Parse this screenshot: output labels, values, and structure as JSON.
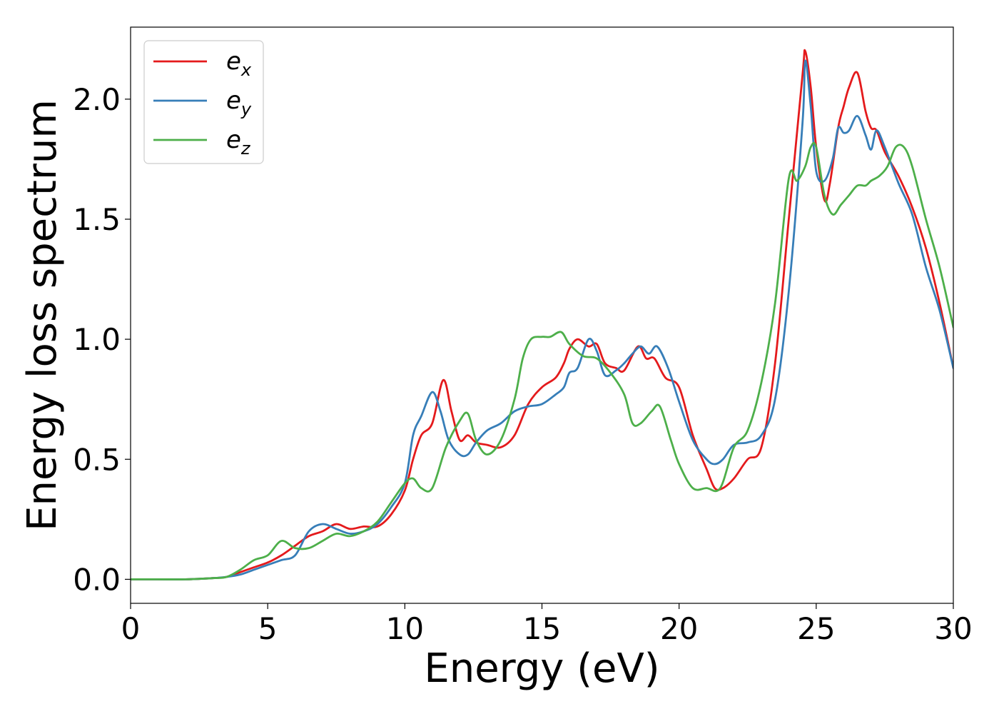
{
  "chart_data": {
    "type": "line",
    "xlabel": "Energy (eV)",
    "ylabel": "Energy loss spectrum",
    "xlim": [
      0,
      30
    ],
    "ylim": [
      -0.1,
      2.3
    ],
    "xticks": [
      0,
      5,
      10,
      15,
      20,
      25,
      30
    ],
    "xtick_labels": [
      "0",
      "5",
      "10",
      "15",
      "20",
      "25",
      "30"
    ],
    "yticks": [
      0.0,
      0.5,
      1.0,
      1.5,
      2.0
    ],
    "ytick_labels": [
      "0.0",
      "0.5",
      "1.0",
      "1.5",
      "2.0"
    ],
    "grid": false,
    "legend_position": "top-left",
    "series": [
      {
        "name": "e",
        "subscript": "x",
        "color": "#e41a1c",
        "x": [
          0,
          1,
          2,
          3,
          3.5,
          4,
          4.5,
          5,
          5.5,
          6,
          6.5,
          7,
          7.5,
          8,
          8.5,
          9,
          9.5,
          10,
          10.3,
          10.6,
          11,
          11.4,
          11.7,
          12,
          12.3,
          12.6,
          13,
          13.5,
          14,
          14.5,
          15,
          15.5,
          15.8,
          16,
          16.3,
          16.7,
          17,
          17.3,
          17.7,
          18,
          18.5,
          18.8,
          19.1,
          19.5,
          20,
          20.5,
          21,
          21.3,
          21.6,
          22,
          22.5,
          23,
          23.5,
          24,
          24.5,
          24.6,
          24.8,
          25,
          25.3,
          25.5,
          25.8,
          26,
          26.2,
          26.5,
          26.8,
          27,
          27.2,
          27.5,
          28,
          28.5,
          29,
          29.5,
          30
        ],
        "y": [
          0,
          0,
          0,
          0.005,
          0.01,
          0.03,
          0.05,
          0.07,
          0.1,
          0.14,
          0.18,
          0.2,
          0.23,
          0.21,
          0.22,
          0.22,
          0.27,
          0.37,
          0.5,
          0.6,
          0.65,
          0.83,
          0.7,
          0.58,
          0.6,
          0.57,
          0.56,
          0.55,
          0.6,
          0.73,
          0.8,
          0.84,
          0.9,
          0.96,
          1.0,
          0.97,
          0.98,
          0.9,
          0.88,
          0.87,
          0.97,
          0.92,
          0.92,
          0.84,
          0.8,
          0.6,
          0.46,
          0.38,
          0.38,
          0.42,
          0.5,
          0.55,
          0.9,
          1.5,
          2.1,
          2.2,
          2.05,
          1.8,
          1.58,
          1.65,
          1.88,
          1.97,
          2.05,
          2.11,
          1.95,
          1.88,
          1.87,
          1.78,
          1.68,
          1.55,
          1.38,
          1.15,
          0.88
        ]
      },
      {
        "name": "e",
        "subscript": "y",
        "color": "#377eb8",
        "x": [
          0,
          1,
          2,
          3,
          3.5,
          4,
          4.5,
          5,
          5.5,
          6,
          6.5,
          7,
          7.5,
          8,
          8.5,
          9,
          9.5,
          10,
          10.3,
          10.6,
          11,
          11.3,
          11.6,
          12,
          12.3,
          12.6,
          13,
          13.5,
          14,
          14.5,
          15,
          15.5,
          15.8,
          16,
          16.3,
          16.7,
          17,
          17.3,
          17.7,
          18,
          18.3,
          18.6,
          18.9,
          19.2,
          19.6,
          20,
          20.5,
          21,
          21.3,
          21.6,
          22,
          22.5,
          23,
          23.5,
          24,
          24.5,
          24.6,
          24.8,
          25,
          25.3,
          25.6,
          25.8,
          26,
          26.2,
          26.5,
          26.8,
          27,
          27.2,
          27.5,
          28,
          28.5,
          29,
          29.5,
          30
        ],
        "y": [
          0,
          0,
          0,
          0.005,
          0.01,
          0.02,
          0.04,
          0.06,
          0.08,
          0.1,
          0.2,
          0.23,
          0.21,
          0.19,
          0.2,
          0.23,
          0.3,
          0.4,
          0.6,
          0.68,
          0.78,
          0.7,
          0.58,
          0.52,
          0.52,
          0.57,
          0.62,
          0.65,
          0.7,
          0.72,
          0.73,
          0.77,
          0.8,
          0.86,
          0.88,
          1.0,
          0.95,
          0.85,
          0.87,
          0.9,
          0.94,
          0.97,
          0.94,
          0.97,
          0.88,
          0.74,
          0.58,
          0.5,
          0.48,
          0.5,
          0.56,
          0.57,
          0.6,
          0.75,
          1.2,
          1.9,
          2.16,
          1.97,
          1.7,
          1.66,
          1.75,
          1.88,
          1.86,
          1.87,
          1.93,
          1.85,
          1.79,
          1.87,
          1.8,
          1.65,
          1.52,
          1.3,
          1.12,
          0.88
        ]
      },
      {
        "name": "e",
        "subscript": "z",
        "color": "#4daf4a",
        "x": [
          0,
          1,
          2,
          3,
          3.5,
          4,
          4.5,
          5,
          5.5,
          6,
          6.5,
          7,
          7.5,
          8,
          8.5,
          9,
          9.5,
          10,
          10.3,
          10.6,
          11,
          11.5,
          12,
          12.3,
          12.6,
          13,
          13.5,
          14,
          14.3,
          14.6,
          15,
          15.3,
          15.7,
          16,
          16.5,
          17,
          17.5,
          18,
          18.3,
          18.6,
          19,
          19.3,
          19.7,
          20,
          20.5,
          21,
          21.5,
          22,
          22.5,
          23,
          23.5,
          24,
          24.3,
          24.6,
          24.8,
          25,
          25.3,
          25.6,
          25.9,
          26.2,
          26.5,
          26.8,
          27,
          27.3,
          27.6,
          27.9,
          28.2,
          28.5,
          29,
          29.5,
          30
        ],
        "y": [
          0,
          0,
          0,
          0.005,
          0.01,
          0.04,
          0.08,
          0.1,
          0.16,
          0.13,
          0.13,
          0.16,
          0.19,
          0.18,
          0.2,
          0.24,
          0.32,
          0.4,
          0.42,
          0.38,
          0.38,
          0.55,
          0.66,
          0.69,
          0.58,
          0.52,
          0.58,
          0.75,
          0.92,
          1.0,
          1.01,
          1.01,
          1.03,
          0.98,
          0.93,
          0.92,
          0.86,
          0.77,
          0.65,
          0.65,
          0.7,
          0.72,
          0.58,
          0.48,
          0.38,
          0.38,
          0.38,
          0.55,
          0.62,
          0.82,
          1.15,
          1.67,
          1.66,
          1.72,
          1.8,
          1.8,
          1.6,
          1.52,
          1.56,
          1.6,
          1.64,
          1.64,
          1.66,
          1.68,
          1.72,
          1.8,
          1.8,
          1.72,
          1.5,
          1.3,
          1.05
        ]
      }
    ]
  }
}
